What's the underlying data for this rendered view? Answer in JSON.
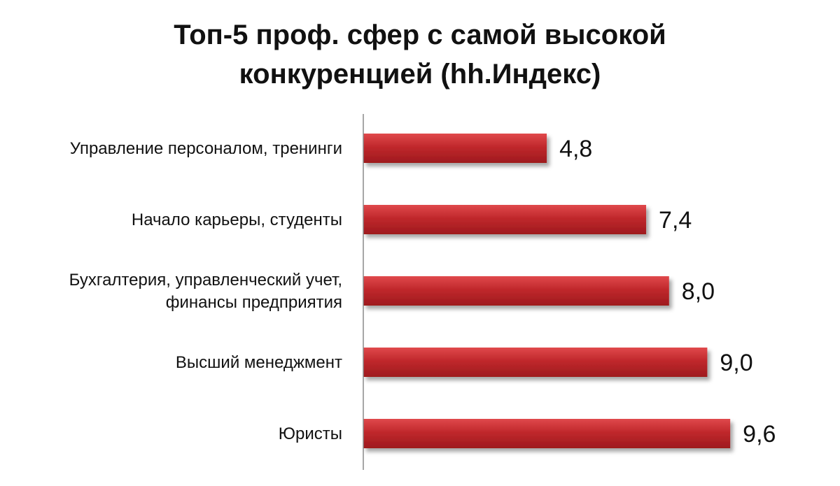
{
  "chart_data": {
    "type": "bar",
    "orientation": "horizontal",
    "title_lines": [
      "Топ-5 проф. сфер с самой высокой",
      "конкуренцией (hh.Индекс)"
    ],
    "categories": [
      [
        "Управление персоналом, тренинги"
      ],
      [
        "Начало карьеры, студенты"
      ],
      [
        "Бухгалтерия, управленческий учет,",
        "финансы предприятия"
      ],
      [
        "Высший менеджмент"
      ],
      [
        "Юристы"
      ]
    ],
    "values": [
      4.8,
      7.4,
      8.0,
      9.0,
      9.6
    ],
    "value_labels": [
      "4,8",
      "7,4",
      "8,0",
      "9,0",
      "9,6"
    ],
    "xlim": [
      0,
      10
    ],
    "grid": false,
    "legend": "none",
    "bar_color": "#c0282c",
    "bar_color_light": "#e0494c",
    "bar_color_dark": "#9e1a1e"
  }
}
